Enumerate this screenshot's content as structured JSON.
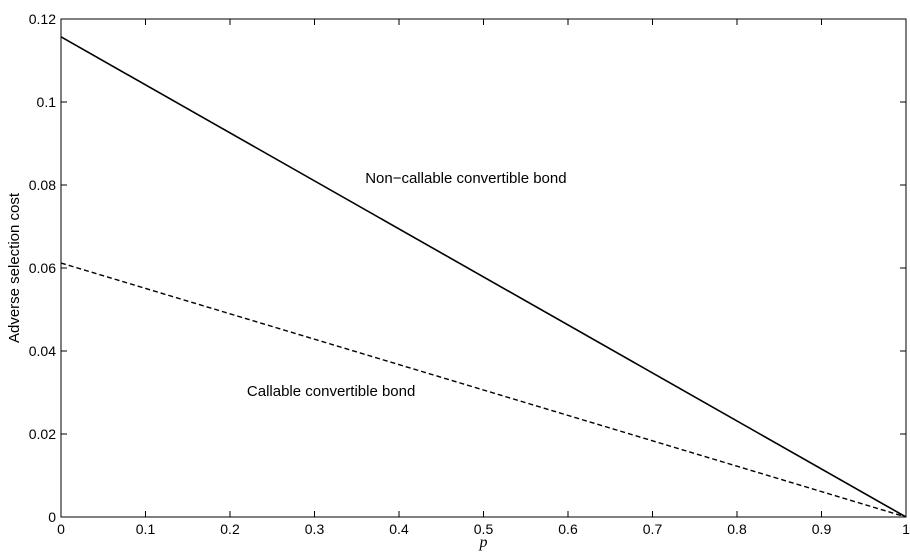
{
  "chart_data": {
    "type": "line",
    "xlabel": "p",
    "ylabel": "Adverse selection cost",
    "xlim": [
      0,
      1
    ],
    "ylim": [
      0,
      0.12
    ],
    "xticks": [
      "0",
      "0.1",
      "0.2",
      "0.3",
      "0.4",
      "0.5",
      "0.6",
      "0.7",
      "0.8",
      "0.9",
      "1"
    ],
    "yticks": [
      "0",
      "0.02",
      "0.04",
      "0.06",
      "0.08",
      "0.1",
      "0.12"
    ],
    "grid": false,
    "legend": "none",
    "series": [
      {
        "name": "Non−callable convertible bond",
        "style": "solid",
        "x": [
          0,
          1
        ],
        "y": [
          0.1157,
          0.0
        ]
      },
      {
        "name": "Callable convertible bond",
        "style": "dashed",
        "x": [
          0,
          1
        ],
        "y": [
          0.0612,
          0.0
        ]
      }
    ],
    "annotations": [
      {
        "text": "Non−callable convertible bond",
        "x": 0.36,
        "y": 0.0805
      },
      {
        "text": "Callable convertible bond",
        "x": 0.22,
        "y": 0.0292
      }
    ]
  }
}
